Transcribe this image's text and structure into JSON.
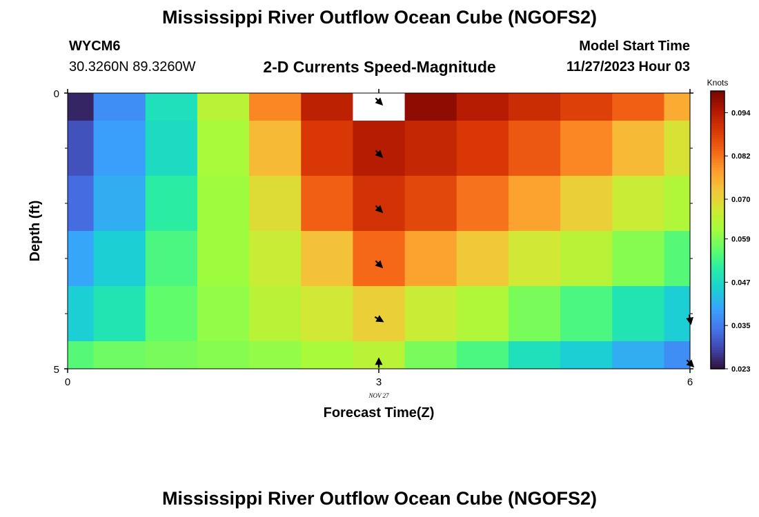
{
  "header": {
    "title": "Mississippi River Outflow Ocean Cube (NGOFS2)",
    "station_id": "WYCM6",
    "coordinates": "30.3260N  89.3260W",
    "subtitle": "2-D Currents Speed-Magnitude",
    "model_start_label": "Model Start Time",
    "model_start_value": "11/27/2023 Hour 03"
  },
  "footer": {
    "title": "Mississippi River Outflow Ocean Cube (NGOFS2)"
  },
  "chart_data": {
    "type": "heatmap",
    "title": "2-D Currents Speed-Magnitude",
    "xlabel": "Forecast Time(Z)",
    "ylabel": "Depth (ft)",
    "x_ticks": [
      "0",
      "3",
      "6"
    ],
    "x_date_label": "NOV 27",
    "y_ticks": [
      "0",
      "5"
    ],
    "xlim": [
      0,
      6
    ],
    "ylim": [
      0,
      5
    ],
    "colorbar": {
      "label": "Knots",
      "ticks": [
        "0.094",
        "0.082",
        "0.070",
        "0.059",
        "0.047",
        "0.035",
        "0.023"
      ],
      "range": [
        0.023,
        0.1
      ]
    },
    "x_centers": [
      0,
      0.5,
      1,
      1.5,
      2,
      2.5,
      3,
      3.5,
      4,
      4.5,
      5,
      5.5,
      6
    ],
    "depth_edges": [
      0,
      0.5,
      1.5,
      2.5,
      3.5,
      4.5,
      5
    ],
    "speed_knots": [
      [
        0.025,
        0.037,
        0.048,
        0.064,
        0.08,
        0.093,
        null,
        0.098,
        0.094,
        0.091,
        0.088,
        0.084,
        0.076
      ],
      [
        0.03,
        0.039,
        0.047,
        0.062,
        0.074,
        0.089,
        0.094,
        0.092,
        0.089,
        0.085,
        0.08,
        0.074,
        0.068
      ],
      [
        0.033,
        0.041,
        0.051,
        0.061,
        0.069,
        0.084,
        0.09,
        0.087,
        0.082,
        0.077,
        0.071,
        0.066,
        0.063
      ],
      [
        0.04,
        0.045,
        0.054,
        0.061,
        0.066,
        0.073,
        0.083,
        0.077,
        0.072,
        0.067,
        0.064,
        0.059,
        0.055
      ],
      [
        0.045,
        0.049,
        0.056,
        0.06,
        0.064,
        0.067,
        0.071,
        0.066,
        0.063,
        0.058,
        0.054,
        0.049,
        0.045
      ],
      [
        0.055,
        0.057,
        0.058,
        0.059,
        0.06,
        0.062,
        0.064,
        0.058,
        0.054,
        0.048,
        0.045,
        0.041,
        0.037
      ]
    ],
    "vectors": [
      {
        "t": 3,
        "depth": 0.15,
        "angle_deg": 135
      },
      {
        "t": 3,
        "depth": 1.1,
        "angle_deg": 135
      },
      {
        "t": 3,
        "depth": 2.1,
        "angle_deg": 135
      },
      {
        "t": 3,
        "depth": 3.1,
        "angle_deg": 135
      },
      {
        "t": 3,
        "depth": 4.1,
        "angle_deg": 120
      },
      {
        "t": 3,
        "depth": 4.9,
        "angle_deg": 0
      },
      {
        "t": 6,
        "depth": 4.1,
        "angle_deg": 170
      },
      {
        "t": 6,
        "depth": 4.9,
        "angle_deg": 135
      }
    ]
  },
  "colors": {
    "background": "#ffffff",
    "missing_cell": "#ffffff",
    "colormap": [
      "#30123b",
      "#4145ab",
      "#4675ed",
      "#39a2fc",
      "#1bcfd4",
      "#24eca6",
      "#61fc6c",
      "#a4fc3b",
      "#d1e834",
      "#f3c63a",
      "#fe9b2d",
      "#f36315",
      "#d93806",
      "#b11901",
      "#7a0402"
    ]
  }
}
